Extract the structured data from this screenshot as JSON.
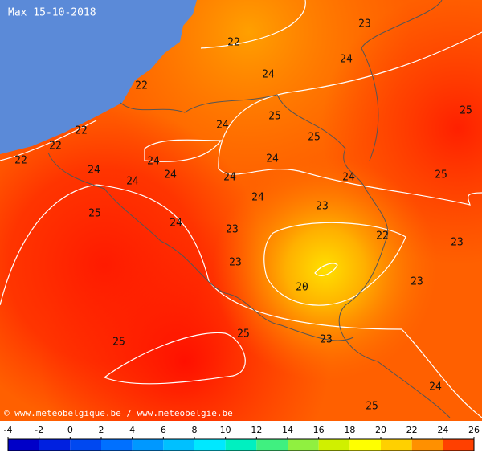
{
  "title": "Max 15-10-2018",
  "credit": "© www.meteobelgique.be / www.meteobelgie.be",
  "labels": [
    23,
    22,
    24,
    24,
    22,
    25,
    25,
    24,
    22,
    25,
    22,
    22,
    24,
    24,
    24,
    24,
    25,
    24,
    24,
    24,
    24,
    23,
    25,
    24,
    23,
    22,
    23,
    23,
    23,
    20,
    25,
    23,
    25,
    24,
    25
  ],
  "colorbar": {
    "ticks": [
      -4,
      -2,
      0,
      2,
      4,
      6,
      8,
      10,
      12,
      14,
      16,
      18,
      20,
      22,
      24,
      26
    ],
    "colors": [
      "#0000c8",
      "#0020e0",
      "#0048f0",
      "#0070ff",
      "#0098ff",
      "#00c0ff",
      "#00e8ff",
      "#00f0c0",
      "#40f080",
      "#90f040",
      "#d0f000",
      "#ffff00",
      "#ffd000",
      "#ff9000",
      "#ff4000"
    ]
  }
}
